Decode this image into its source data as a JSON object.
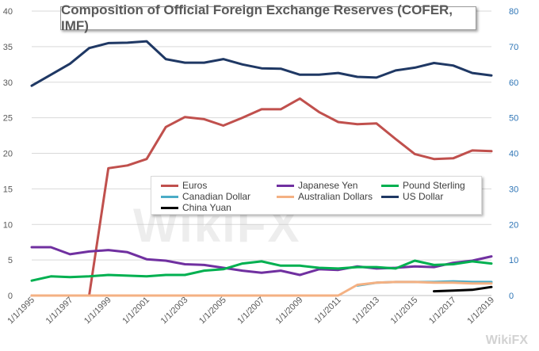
{
  "title": "Composition  of Official Foreign Exchange Reserves (COFER, IMF)",
  "watermark": "WikiFX",
  "chart_data": {
    "type": "line",
    "title": "Composition  of Official Foreign Exchange Reserves (COFER, IMF)",
    "x": [
      "1/1/1995",
      "1/1/1996",
      "1/1/1997",
      "1/1/1998",
      "1/1/1999",
      "1/1/2000",
      "1/1/2001",
      "1/1/2002",
      "1/1/2003",
      "1/1/2004",
      "1/1/2005",
      "1/1/2006",
      "1/1/2007",
      "1/1/2008",
      "1/1/2009",
      "1/1/2010",
      "1/1/2011",
      "1/1/2012",
      "1/1/2013",
      "1/1/2014",
      "1/1/2015",
      "1/1/2016",
      "1/1/2017",
      "1/1/2018",
      "1/1/2019"
    ],
    "x_tick_labels": [
      "1/1/1995",
      "1/1/1997",
      "1/1/1999",
      "1/1/2001",
      "1/1/2003",
      "1/1/2005",
      "1/1/2007",
      "1/1/2009",
      "1/1/2011",
      "1/1/2013",
      "1/1/2015",
      "1/1/2017",
      "1/1/2019"
    ],
    "y_left": {
      "ylim": [
        0,
        40
      ],
      "ticks": [
        0,
        5,
        10,
        15,
        20,
        25,
        30,
        35,
        40
      ]
    },
    "y_right": {
      "ylim": [
        0,
        80
      ],
      "ticks": [
        0,
        10,
        20,
        30,
        40,
        50,
        60,
        70,
        80
      ]
    },
    "series": [
      {
        "name": "Euros",
        "axis": "left",
        "color": "#c0504d",
        "values": [
          0,
          0,
          0,
          0,
          17.9,
          18.3,
          19.2,
          23.7,
          25.1,
          24.8,
          23.9,
          25.0,
          26.2,
          26.2,
          27.7,
          25.8,
          24.4,
          24.1,
          24.2,
          22.0,
          19.9,
          19.2,
          19.3,
          20.4,
          20.3
        ]
      },
      {
        "name": "Japanese Yen",
        "axis": "left",
        "color": "#7030a0",
        "values": [
          6.8,
          6.8,
          5.8,
          6.2,
          6.4,
          6.1,
          5.1,
          4.9,
          4.4,
          4.3,
          3.9,
          3.5,
          3.2,
          3.5,
          2.9,
          3.7,
          3.6,
          4.1,
          3.8,
          3.9,
          4.1,
          4.0,
          4.6,
          4.9,
          5.5
        ]
      },
      {
        "name": "Pound Sterling",
        "axis": "left",
        "color": "#00b050",
        "values": [
          2.1,
          2.7,
          2.6,
          2.7,
          2.9,
          2.8,
          2.7,
          2.9,
          2.9,
          3.5,
          3.7,
          4.5,
          4.8,
          4.2,
          4.2,
          3.9,
          3.8,
          4.0,
          4.0,
          3.8,
          4.9,
          4.3,
          4.4,
          4.8,
          4.5
        ]
      },
      {
        "name": "Canadian Dollar",
        "axis": "left",
        "color": "#4bacc6",
        "values": [
          null,
          null,
          null,
          null,
          null,
          null,
          null,
          null,
          null,
          null,
          null,
          null,
          null,
          null,
          null,
          null,
          null,
          1.4,
          1.8,
          1.9,
          1.9,
          1.9,
          2.0,
          1.9,
          1.9
        ]
      },
      {
        "name": "Australian Dollars",
        "axis": "left",
        "color": "#f4b183",
        "values": [
          0,
          0,
          0,
          0,
          0,
          0,
          0,
          0,
          0,
          0,
          0,
          0,
          0,
          0,
          0,
          0,
          0,
          1.5,
          1.8,
          1.9,
          1.9,
          1.8,
          1.8,
          1.7,
          1.7
        ]
      },
      {
        "name": "US Dollar",
        "axis": "right",
        "color": "#1f3864",
        "values": [
          59.0,
          62.1,
          65.2,
          69.6,
          71.0,
          71.1,
          71.5,
          66.5,
          65.5,
          65.5,
          66.5,
          65.0,
          63.9,
          63.8,
          62.1,
          62.1,
          62.6,
          61.5,
          61.3,
          63.3,
          64.1,
          65.4,
          64.7,
          62.6,
          61.9
        ]
      },
      {
        "name": "China Yuan",
        "axis": "left",
        "color": "#000000",
        "values": [
          null,
          null,
          null,
          null,
          null,
          null,
          null,
          null,
          null,
          null,
          null,
          null,
          null,
          null,
          null,
          null,
          null,
          null,
          null,
          null,
          null,
          0.6,
          0.7,
          0.8,
          1.2
        ]
      }
    ],
    "legend": "inside-center-right",
    "grid": true
  }
}
